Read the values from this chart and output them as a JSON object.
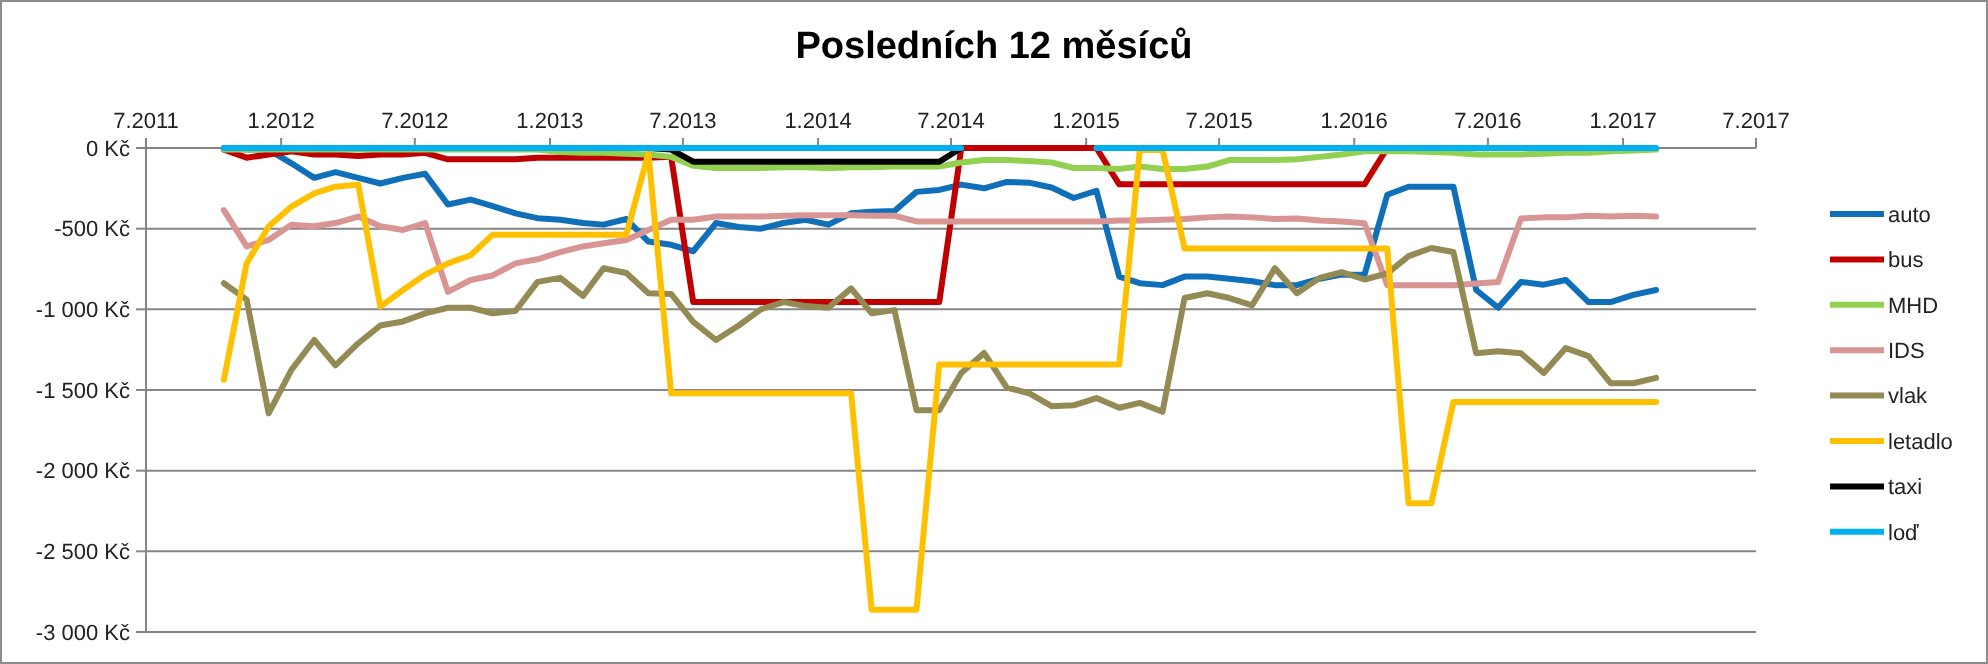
{
  "chart_data": {
    "type": "line",
    "title": "Posledních 12 měsíců",
    "x": [
      "2011-10-15",
      "2011-11-15",
      "2011-12-15",
      "2012-01-15",
      "2012-02-15",
      "2012-03-15",
      "2012-04-15",
      "2012-05-15",
      "2012-06-15",
      "2012-07-15",
      "2012-08-15",
      "2012-09-15",
      "2012-10-15",
      "2012-11-15",
      "2012-12-15",
      "2013-01-15",
      "2013-02-15",
      "2013-03-15",
      "2013-04-15",
      "2013-05-15",
      "2013-06-15",
      "2013-07-15",
      "2013-08-15",
      "2013-09-15",
      "2013-10-15",
      "2013-11-15",
      "2013-12-15",
      "2014-01-15",
      "2014-02-15",
      "2014-03-15",
      "2014-04-15",
      "2014-05-15",
      "2014-06-15",
      "2014-07-15",
      "2014-08-15",
      "2014-09-15",
      "2014-10-15",
      "2014-11-15",
      "2014-12-15",
      "2015-01-15",
      "2015-02-15",
      "2015-03-15",
      "2015-04-15",
      "2015-05-15",
      "2015-06-15",
      "2015-07-15",
      "2015-08-15",
      "2015-09-15",
      "2015-10-15",
      "2015-11-15",
      "2015-12-15",
      "2016-01-15",
      "2016-02-15",
      "2016-03-15",
      "2016-04-15",
      "2016-05-15",
      "2016-06-15",
      "2016-07-15",
      "2016-08-15",
      "2016-09-15",
      "2016-10-15",
      "2016-11-15",
      "2016-12-15",
      "2017-01-15",
      "2017-02-15"
    ],
    "xlim": [
      "2011-07",
      "2017-07"
    ],
    "xticks": [
      {
        "value": "2011-07",
        "label": "7.2011"
      },
      {
        "value": "2012-01",
        "label": "1.2012"
      },
      {
        "value": "2012-07",
        "label": "7.2012"
      },
      {
        "value": "2013-01",
        "label": "1.2013"
      },
      {
        "value": "2013-07",
        "label": "7.2013"
      },
      {
        "value": "2014-01",
        "label": "1.2014"
      },
      {
        "value": "2014-07",
        "label": "7.2014"
      },
      {
        "value": "2015-01",
        "label": "1.2015"
      },
      {
        "value": "2015-07",
        "label": "7.2015"
      },
      {
        "value": "2016-01",
        "label": "1.2016"
      },
      {
        "value": "2016-07",
        "label": "7.2016"
      },
      {
        "value": "2017-01",
        "label": "1.2017"
      },
      {
        "value": "2017-07",
        "label": "7.2017"
      }
    ],
    "ylim": [
      -3000,
      0
    ],
    "yticks": [
      {
        "value": 0,
        "label": "0 Kč"
      },
      {
        "value": -500,
        "label": "-500 Kč"
      },
      {
        "value": -1000,
        "label": "-1 000 Kč"
      },
      {
        "value": -1500,
        "label": "-1 500 Kč"
      },
      {
        "value": -2000,
        "label": "-2 000 Kč"
      },
      {
        "value": -2500,
        "label": "-2 500 Kč"
      },
      {
        "value": -3000,
        "label": "-3 000 Kč"
      }
    ],
    "grid": "y",
    "legend": "right",
    "marker": "none",
    "line_style": "solid",
    "series": [
      {
        "name": "auto",
        "color": "#0f6fb8",
        "values": [
          0,
          -10,
          -10,
          -95,
          -185,
          -150,
          -185,
          -220,
          -185,
          -160,
          -350,
          -320,
          -360,
          -405,
          -435,
          -445,
          -465,
          -475,
          -440,
          -580,
          -600,
          -640,
          -465,
          -490,
          -500,
          -465,
          -445,
          -475,
          -405,
          -395,
          -390,
          -272,
          -260,
          -227,
          -250,
          -210,
          -215,
          -245,
          -310,
          -265,
          -797,
          -838,
          -850,
          -797,
          -797,
          -810,
          -826,
          -850,
          -850,
          -810,
          -785,
          -785,
          -290,
          -240,
          -240,
          -240,
          -880,
          -990,
          -830,
          -847,
          -818,
          -955,
          -955,
          -910,
          -880
        ]
      },
      {
        "name": "bus",
        "color": "#c00000",
        "values": [
          -10,
          -60,
          -40,
          -20,
          -40,
          -40,
          -50,
          -40,
          -40,
          -30,
          -70,
          -70,
          -70,
          -70,
          -60,
          -60,
          -60,
          -60,
          -60,
          -60,
          -55,
          -955,
          -955,
          -955,
          -955,
          -955,
          -955,
          -955,
          -955,
          -955,
          -955,
          -955,
          -955,
          0,
          0,
          0,
          0,
          0,
          0,
          0,
          -225,
          -225,
          -225,
          -225,
          -225,
          -225,
          -225,
          -225,
          -225,
          -225,
          -225,
          -225,
          0,
          0,
          null,
          null,
          null,
          null,
          null,
          null,
          null,
          null,
          null,
          null,
          null
        ]
      },
      {
        "name": "MHD",
        "color": "#92d050",
        "values": [
          -10,
          -10,
          -10,
          -10,
          -10,
          -10,
          -10,
          -10,
          -10,
          -10,
          -10,
          -10,
          -10,
          -10,
          -10,
          -25,
          -30,
          -30,
          -35,
          -40,
          -55,
          -110,
          -124,
          -124,
          -124,
          -120,
          -120,
          -125,
          -120,
          -120,
          -115,
          -115,
          -115,
          -90,
          -75,
          -75,
          -80,
          -90,
          -124,
          -124,
          -130,
          -115,
          -130,
          -130,
          -115,
          -75,
          -75,
          -75,
          -70,
          -55,
          -40,
          -20,
          -20,
          -20,
          -25,
          -30,
          -40,
          -40,
          -40,
          -35,
          -30,
          -30,
          -20,
          -15,
          -10
        ]
      },
      {
        "name": "IDS",
        "color": "#d99594",
        "values": [
          -385,
          -610,
          -570,
          -475,
          -485,
          -465,
          -425,
          -485,
          -508,
          -465,
          -892,
          -818,
          -790,
          -715,
          -690,
          -645,
          -610,
          -590,
          -570,
          -508,
          -445,
          -445,
          -425,
          -425,
          -425,
          -420,
          -417,
          -417,
          -417,
          -420,
          -420,
          -455,
          -455,
          -455,
          -455,
          -455,
          -455,
          -455,
          -455,
          -455,
          -450,
          -450,
          -445,
          -440,
          -430,
          -425,
          -430,
          -440,
          -437,
          -450,
          -455,
          -466,
          -850,
          -850,
          -850,
          -850,
          -840,
          -830,
          -437,
          -430,
          -430,
          -420,
          -425,
          -420,
          -425
        ]
      },
      {
        "name": "vlak",
        "color": "#948a54",
        "values": [
          -838,
          -940,
          -1645,
          -1375,
          -1190,
          -1347,
          -1210,
          -1100,
          -1075,
          -1025,
          -990,
          -990,
          -1025,
          -1010,
          -830,
          -805,
          -917,
          -745,
          -775,
          -900,
          -905,
          -1078,
          -1190,
          -1100,
          -1000,
          -955,
          -980,
          -990,
          -870,
          -1025,
          -1005,
          -1625,
          -1625,
          -1395,
          -1270,
          -1485,
          -1520,
          -1600,
          -1595,
          -1550,
          -1610,
          -1580,
          -1635,
          -930,
          -900,
          -930,
          -975,
          -745,
          -900,
          -805,
          -770,
          -815,
          -777,
          -670,
          -620,
          -645,
          -1272,
          -1260,
          -1272,
          -1395,
          -1240,
          -1290,
          -1458,
          -1458,
          -1425
        ]
      },
      {
        "name": "letadlo",
        "color": "#ffc000",
        "values": [
          -1437,
          -715,
          -487,
          -363,
          -281,
          -240,
          -227,
          -983,
          -880,
          -785,
          -715,
          -665,
          -537,
          -537,
          -537,
          -537,
          -537,
          -537,
          -537,
          -33,
          -1520,
          -1520,
          -1520,
          -1520,
          -1520,
          -1520,
          -1520,
          -1520,
          -1520,
          -2862,
          -2862,
          -2862,
          -1342,
          -1342,
          -1342,
          -1342,
          -1342,
          -1342,
          -1342,
          -1342,
          -1342,
          -12,
          -12,
          -623,
          -623,
          -623,
          -623,
          -623,
          -623,
          -623,
          -623,
          -623,
          -623,
          -2202,
          -2202,
          -1574,
          -1574,
          -1574,
          -1574,
          -1574,
          -1574,
          -1574,
          -1574,
          -1574,
          -1574
        ]
      },
      {
        "name": "taxi",
        "color": "#000000",
        "values": [
          null,
          null,
          null,
          null,
          null,
          null,
          null,
          null,
          null,
          null,
          null,
          null,
          null,
          null,
          null,
          null,
          null,
          null,
          null,
          0,
          -10,
          -85,
          -85,
          -85,
          -85,
          -85,
          -85,
          -85,
          -85,
          -85,
          -85,
          -85,
          -85,
          0,
          null,
          null,
          null,
          null,
          null,
          null,
          null,
          null,
          null,
          null,
          null,
          null,
          null,
          null,
          null,
          null,
          null,
          null,
          null,
          null,
          null,
          null,
          null,
          null,
          null,
          null,
          null,
          null,
          null,
          null,
          null
        ]
      },
      {
        "name": "loď",
        "color": "#00b0f0",
        "values": [
          0,
          0,
          0,
          0,
          0,
          0,
          0,
          0,
          0,
          0,
          0,
          0,
          0,
          0,
          0,
          0,
          0,
          0,
          0,
          0,
          0,
          0,
          0,
          0,
          0,
          0,
          0,
          0,
          0,
          0,
          0,
          0,
          0,
          0,
          null,
          null,
          null,
          null,
          null,
          0,
          0,
          0,
          0,
          0,
          0,
          0,
          0,
          0,
          0,
          0,
          0,
          0,
          0,
          0,
          0,
          0,
          0,
          0,
          0,
          0,
          0,
          0,
          0,
          0,
          0
        ]
      }
    ]
  }
}
